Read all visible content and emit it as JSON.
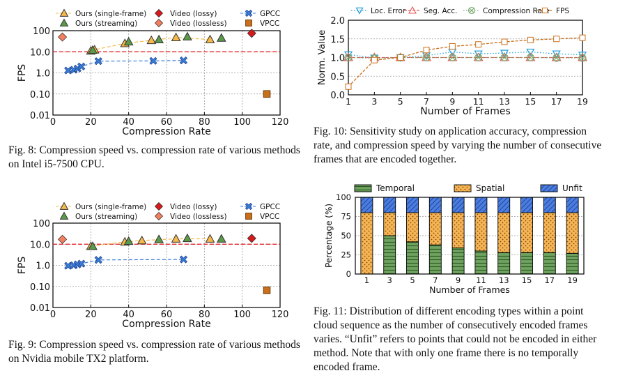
{
  "captions": {
    "fig8": "Fig. 8: Compression speed vs. compression rate of various methods on Intel i5-7500 CPU.",
    "fig9": "Fig. 9: Compression speed vs. compression rate of various methods on Nvidia mobile TX2 platform.",
    "fig10": "Fig. 10: Sensitivity study on application accuracy, compression rate, and compression speed by varying the number of consecutive frames that are encoded together.",
    "fig11": "Fig. 11: Distribution of different encoding types within a point cloud sequence as the number of consecutively encoded frames varies. “Unfit” refers to points that could not be encoded in either method. Note that with only one frame there is no temporally encoded frame."
  },
  "colors": {
    "ours_single": "#f5b84a",
    "ours_streaming": "#5b9a4a",
    "video_lossy": "#d7191c",
    "video_lossless": "#f47f5e",
    "gpcc": "#3b7dd8",
    "vpcc": "#c9701b",
    "reference_line": "#e8161d",
    "loc_error": "#2ea3d8",
    "seg_acc": "#e85a5a",
    "compression_rate": "#74a86a",
    "fps": "#c9701b",
    "temporal": "#5b8f4f",
    "spatial": "#f5a74a",
    "unfit": "#3d6fd8"
  },
  "chart_data": [
    {
      "id": "fig8",
      "type": "scatter",
      "xlabel": "Compression Rate",
      "ylabel": "FPS",
      "xlim": [
        0,
        120
      ],
      "ylim": [
        0.01,
        100
      ],
      "y_scale": "log",
      "x_ticks": [
        "0",
        "20",
        "40",
        "60",
        "80",
        "100",
        "120"
      ],
      "y_ticks": [
        "0.01",
        "0.10",
        "1.0",
        "10.0",
        "100"
      ],
      "reference_line_y": 10,
      "legend_position": "top",
      "series": [
        {
          "name": "Ours (single-frame)",
          "marker": "triangle",
          "connected": true,
          "points": [
            [
              20,
              11
            ],
            [
              22,
              12.5
            ],
            [
              38,
              25
            ],
            [
              52,
              35
            ],
            [
              65,
              48
            ],
            [
              83,
              38
            ]
          ]
        },
        {
          "name": "Ours (streaming)",
          "marker": "triangle",
          "connected": false,
          "points": [
            [
              21,
              12
            ],
            [
              40,
              30
            ],
            [
              56,
              38
            ],
            [
              71,
              52
            ],
            [
              89,
              45
            ]
          ]
        },
        {
          "name": "Video (lossy)",
          "marker": "diamond",
          "connected": false,
          "points": [
            [
              105,
              75
            ]
          ]
        },
        {
          "name": "Video (lossless)",
          "marker": "diamond",
          "connected": false,
          "points": [
            [
              5,
              50
            ]
          ]
        },
        {
          "name": "GPCC",
          "marker": "x",
          "connected": true,
          "points": [
            [
              8,
              1.3
            ],
            [
              11,
              1.4
            ],
            [
              13,
              1.6
            ],
            [
              15,
              2.0
            ],
            [
              24,
              3.6
            ],
            [
              53,
              3.7
            ],
            [
              69,
              3.9
            ]
          ]
        },
        {
          "name": "VPCC",
          "marker": "square",
          "connected": false,
          "points": [
            [
              113,
              0.1
            ]
          ]
        }
      ]
    },
    {
      "id": "fig9",
      "type": "scatter",
      "xlabel": "Compression Rate",
      "ylabel": "FPS",
      "xlim": [
        0,
        120
      ],
      "ylim": [
        0.01,
        100
      ],
      "y_scale": "log",
      "x_ticks": [
        "0",
        "20",
        "40",
        "60",
        "80",
        "100",
        "120"
      ],
      "y_ticks": [
        "0.01",
        "0.10",
        "1.0",
        "10.0",
        "100"
      ],
      "reference_line_y": 10,
      "legend_position": "top",
      "series": [
        {
          "name": "Ours (single-frame)",
          "marker": "triangle",
          "connected": true,
          "points": [
            [
              20,
              8
            ],
            [
              38,
              13
            ],
            [
              47,
              15
            ],
            [
              65,
              18
            ],
            [
              83,
              18
            ]
          ]
        },
        {
          "name": "Ours (streaming)",
          "marker": "triangle",
          "connected": false,
          "points": [
            [
              21,
              8
            ],
            [
              40,
              14
            ],
            [
              56,
              17
            ],
            [
              71,
              19
            ],
            [
              89,
              18
            ]
          ]
        },
        {
          "name": "Video (lossy)",
          "marker": "diamond",
          "connected": false,
          "points": [
            [
              105,
              19
            ]
          ]
        },
        {
          "name": "Video (lossless)",
          "marker": "diamond",
          "connected": false,
          "points": [
            [
              5,
              17
            ]
          ]
        },
        {
          "name": "GPCC",
          "marker": "x",
          "connected": true,
          "points": [
            [
              8,
              0.95
            ],
            [
              11,
              1.0
            ],
            [
              13,
              1.1
            ],
            [
              15,
              1.2
            ],
            [
              24,
              1.8
            ],
            [
              69,
              1.9
            ]
          ]
        },
        {
          "name": "VPCC",
          "marker": "square",
          "connected": false,
          "points": [
            [
              113,
              0.065
            ]
          ]
        }
      ]
    },
    {
      "id": "fig10",
      "type": "line",
      "xlabel": "Number of Frames",
      "ylabel": "Norm. Value",
      "x": [
        1,
        3,
        5,
        7,
        9,
        11,
        13,
        15,
        17,
        19
      ],
      "x_ticks": [
        "1",
        "3",
        "5",
        "7",
        "9",
        "11",
        "13",
        "15",
        "17",
        "19"
      ],
      "y_ticks": [
        "0.0",
        "0.5",
        "1.0",
        "1.5",
        "2.0"
      ],
      "xlim": [
        1,
        19
      ],
      "ylim": [
        0,
        2
      ],
      "legend_position": "top",
      "series": [
        {
          "name": "Loc. Error",
          "marker": "triangle-down",
          "values": [
            1.08,
            0.99,
            1.0,
            1.05,
            1.15,
            1.1,
            1.12,
            1.15,
            1.1,
            1.07
          ]
        },
        {
          "name": "Seg. Acc.",
          "marker": "triangle",
          "values": [
            1.0,
            1.0,
            1.0,
            1.0,
            1.0,
            1.0,
            1.0,
            1.0,
            1.0,
            1.0
          ]
        },
        {
          "name": "Compression Rate",
          "marker": "x-circle",
          "values": [
            1.0,
            0.98,
            1.0,
            1.0,
            1.0,
            1.0,
            1.0,
            1.0,
            0.99,
            0.99
          ]
        },
        {
          "name": "FPS",
          "marker": "square",
          "values": [
            0.22,
            0.93,
            1.0,
            1.2,
            1.3,
            1.35,
            1.42,
            1.47,
            1.5,
            1.53
          ]
        }
      ]
    },
    {
      "id": "fig11",
      "type": "bar",
      "stacked": true,
      "xlabel": "Number of Frames",
      "ylabel": "Percentage (%)",
      "categories": [
        "1",
        "3",
        "5",
        "7",
        "9",
        "11",
        "13",
        "15",
        "17",
        "19"
      ],
      "y_ticks": [
        "0",
        "25",
        "50",
        "75",
        "100"
      ],
      "ylim": [
        0,
        100
      ],
      "legend_position": "top",
      "series": [
        {
          "name": "Temporal",
          "values": [
            0,
            50,
            42,
            38,
            34,
            30,
            28,
            28,
            28,
            27
          ]
        },
        {
          "name": "Spatial",
          "values": [
            80,
            30,
            38,
            42,
            46,
            50,
            52,
            52,
            52,
            53
          ]
        },
        {
          "name": "Unfit",
          "values": [
            20,
            20,
            20,
            20,
            20,
            20,
            20,
            20,
            20,
            20
          ]
        }
      ]
    }
  ]
}
